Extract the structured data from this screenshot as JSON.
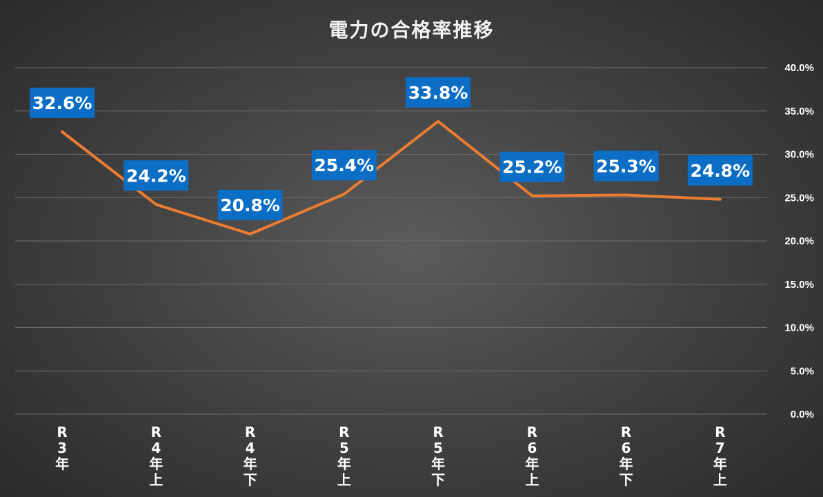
{
  "chart_data": {
    "type": "line",
    "title": "電力の合格率推移",
    "categories": [
      "R3年",
      "R4年上",
      "R4年下",
      "R5年上",
      "R5年下",
      "R6年上",
      "R6年下",
      "R7年上"
    ],
    "category_lines": [
      [
        "R",
        "3",
        "年"
      ],
      [
        "R",
        "4",
        "年",
        "上"
      ],
      [
        "R",
        "4",
        "年",
        "下"
      ],
      [
        "R",
        "5",
        "年",
        "上"
      ],
      [
        "R",
        "5",
        "年",
        "下"
      ],
      [
        "R",
        "6",
        "年",
        "上"
      ],
      [
        "R",
        "6",
        "年",
        "下"
      ],
      [
        "R",
        "7",
        "年",
        "上"
      ]
    ],
    "series": [
      {
        "values": [
          32.6,
          24.2,
          20.8,
          25.4,
          33.8,
          25.2,
          25.3,
          24.8
        ],
        "labels": [
          "32.6%",
          "24.2%",
          "20.8%",
          "25.4%",
          "33.8%",
          "25.2%",
          "25.3%",
          "24.8%"
        ],
        "color": "#ed7d31"
      }
    ],
    "ylim": [
      0,
      40
    ],
    "yticks": [
      0,
      5,
      10,
      15,
      20,
      25,
      30,
      35,
      40
    ],
    "ytick_labels": [
      "0.0%",
      "5.0%",
      "10.0%",
      "15.0%",
      "20.0%",
      "25.0%",
      "30.0%",
      "35.0%",
      "40.0%"
    ],
    "y_axis_position": "right",
    "grid": true,
    "legend": "none",
    "label_box_color": "#0b6ec4"
  }
}
